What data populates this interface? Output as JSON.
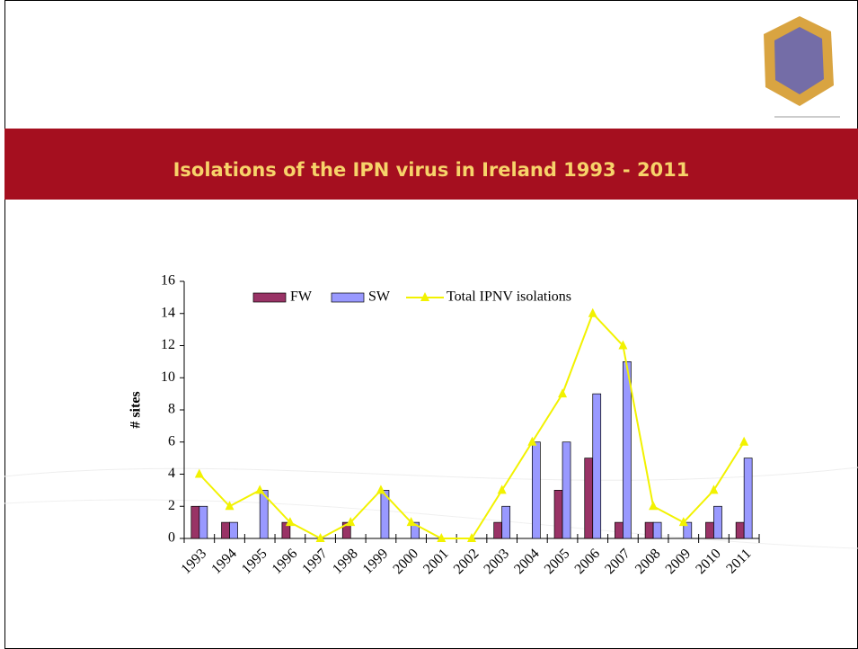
{
  "chart_data": {
    "type": "bar",
    "title": "Isolations of the IPN virus in Ireland 1993 - 2011",
    "ylabel": "# sites",
    "categories": [
      "1993",
      "1994",
      "1995",
      "1996",
      "1997",
      "1998",
      "1999",
      "2000",
      "2001",
      "2002",
      "2003",
      "2004",
      "2005",
      "2006",
      "2007",
      "2008",
      "2009",
      "2010",
      "2011"
    ],
    "series": [
      {
        "name": "FW",
        "color": "#993366",
        "values": [
          2,
          1,
          0,
          1,
          0,
          1,
          0,
          0,
          0,
          0,
          1,
          0,
          3,
          5,
          1,
          1,
          0,
          1,
          1
        ]
      },
      {
        "name": "SW",
        "color": "#9999ff",
        "values": [
          2,
          1,
          3,
          0,
          0,
          0,
          3,
          1,
          0,
          0,
          2,
          6,
          6,
          9,
          11,
          1,
          1,
          2,
          5
        ]
      },
      {
        "name": "Total IPNV isolations",
        "color": "#f2f200",
        "line": true,
        "values": [
          4,
          2,
          3,
          1,
          0,
          1,
          3,
          1,
          0,
          0,
          3,
          6,
          9,
          14,
          12,
          2,
          1,
          3,
          6
        ]
      }
    ],
    "ylim": [
      0,
      16
    ],
    "yticks": [
      0,
      2,
      4,
      6,
      8,
      10,
      12,
      14,
      16
    ],
    "legend": "top"
  }
}
